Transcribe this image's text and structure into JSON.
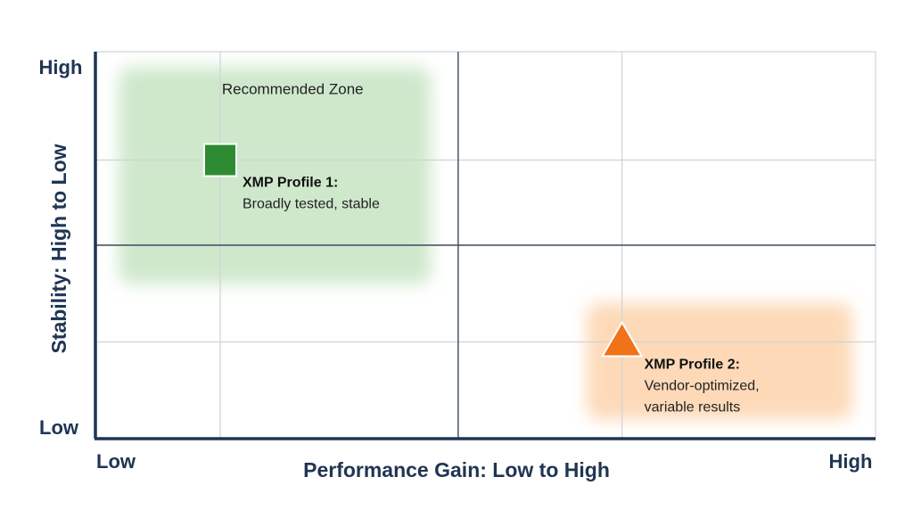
{
  "chart_data": {
    "type": "scatter",
    "xlabel": "Performance Gain: Low to High",
    "ylabel": "Stability: High to Low",
    "x_low_label": "Low",
    "x_high_label": "High",
    "y_low_label": "Low",
    "y_high_label": "High",
    "xlim": [
      0,
      1
    ],
    "ylim": [
      0,
      1
    ],
    "grid": true,
    "zones": [
      {
        "label": "Recommended Zone",
        "x": [
          0.03,
          0.43
        ],
        "y": [
          0.4,
          0.96
        ],
        "color": "#cfe8cc"
      },
      {
        "label": "",
        "x": [
          0.63,
          0.97
        ],
        "y": [
          0.05,
          0.35
        ],
        "color": "#fdd9b8"
      }
    ],
    "points": [
      {
        "title": "XMP Profile 1:",
        "desc_lines": [
          "Broadly tested, stable"
        ],
        "x": 0.16,
        "y": 0.72,
        "marker": "square",
        "color": "#2e8b32"
      },
      {
        "title": "XMP Profile 2:",
        "desc_lines": [
          "Vendor-optimized,",
          "variable results"
        ],
        "x": 0.675,
        "y": 0.25,
        "marker": "triangle",
        "color": "#f07219"
      }
    ]
  },
  "colors": {
    "axis": "#1f3552",
    "grid_major": "#3b4a5c",
    "grid_minor": "#cfd3d8"
  }
}
